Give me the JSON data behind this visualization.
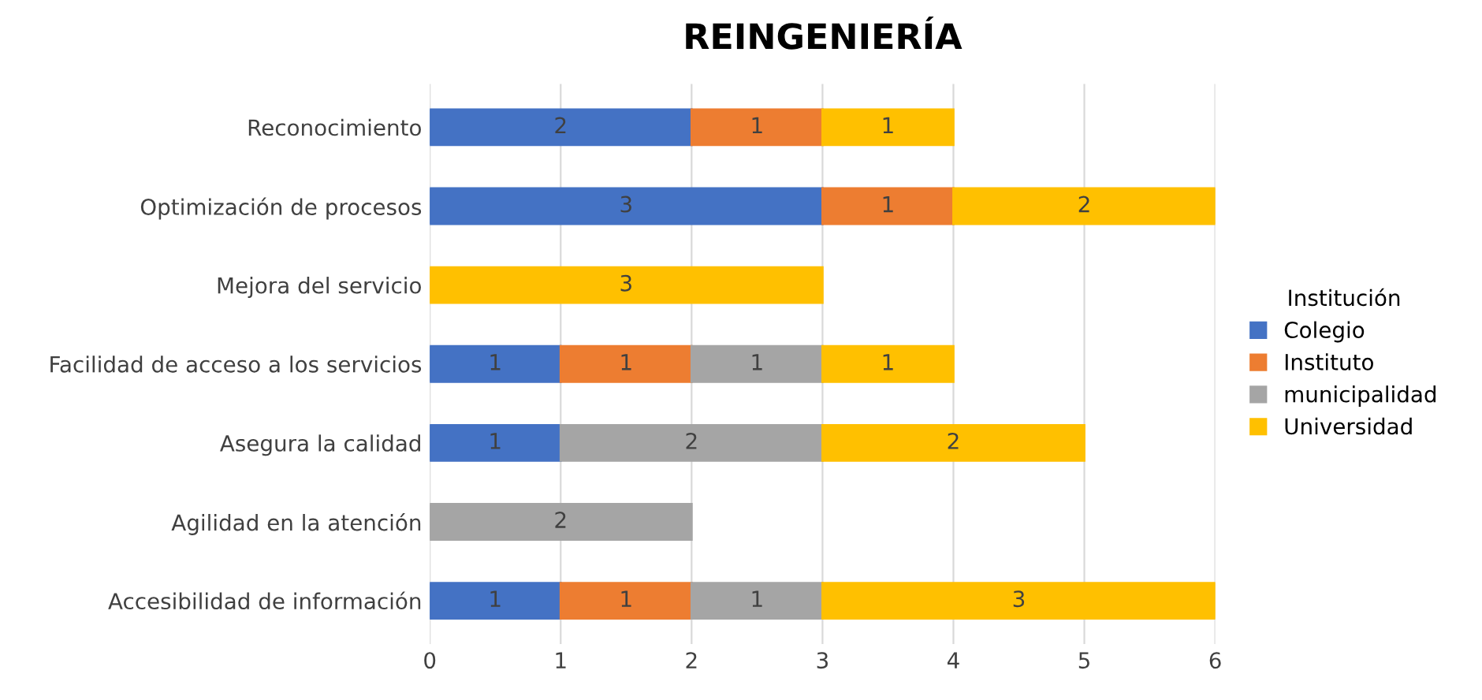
{
  "chart_data": {
    "type": "bar",
    "orientation": "horizontal",
    "stacked": true,
    "title": "REINGENIERÍA",
    "legend_title": "Institución",
    "categories": [
      "Reconocimiento",
      "Optimización de procesos",
      "Mejora del servicio",
      "Facilidad de acceso a los servicios",
      "Asegura la calidad",
      "Agilidad en la atención",
      "Accesibilidad de información"
    ],
    "series": [
      {
        "name": "Colegio",
        "color": "#4472c4",
        "values": [
          2,
          3,
          null,
          1,
          1,
          null,
          1
        ]
      },
      {
        "name": "Instituto",
        "color": "#ed7d31",
        "values": [
          1,
          1,
          null,
          1,
          null,
          null,
          1
        ]
      },
      {
        "name": "municipalidad",
        "color": "#a5a5a5",
        "values": [
          null,
          null,
          null,
          1,
          2,
          2,
          1
        ]
      },
      {
        "name": "Universidad",
        "color": "#ffc000",
        "values": [
          1,
          2,
          3,
          1,
          2,
          null,
          3
        ]
      }
    ],
    "xlim": [
      0,
      6
    ],
    "xticks": [
      0,
      1,
      2,
      3,
      4,
      5,
      6
    ],
    "grid": "x",
    "legend": "right",
    "data_labels": true
  }
}
